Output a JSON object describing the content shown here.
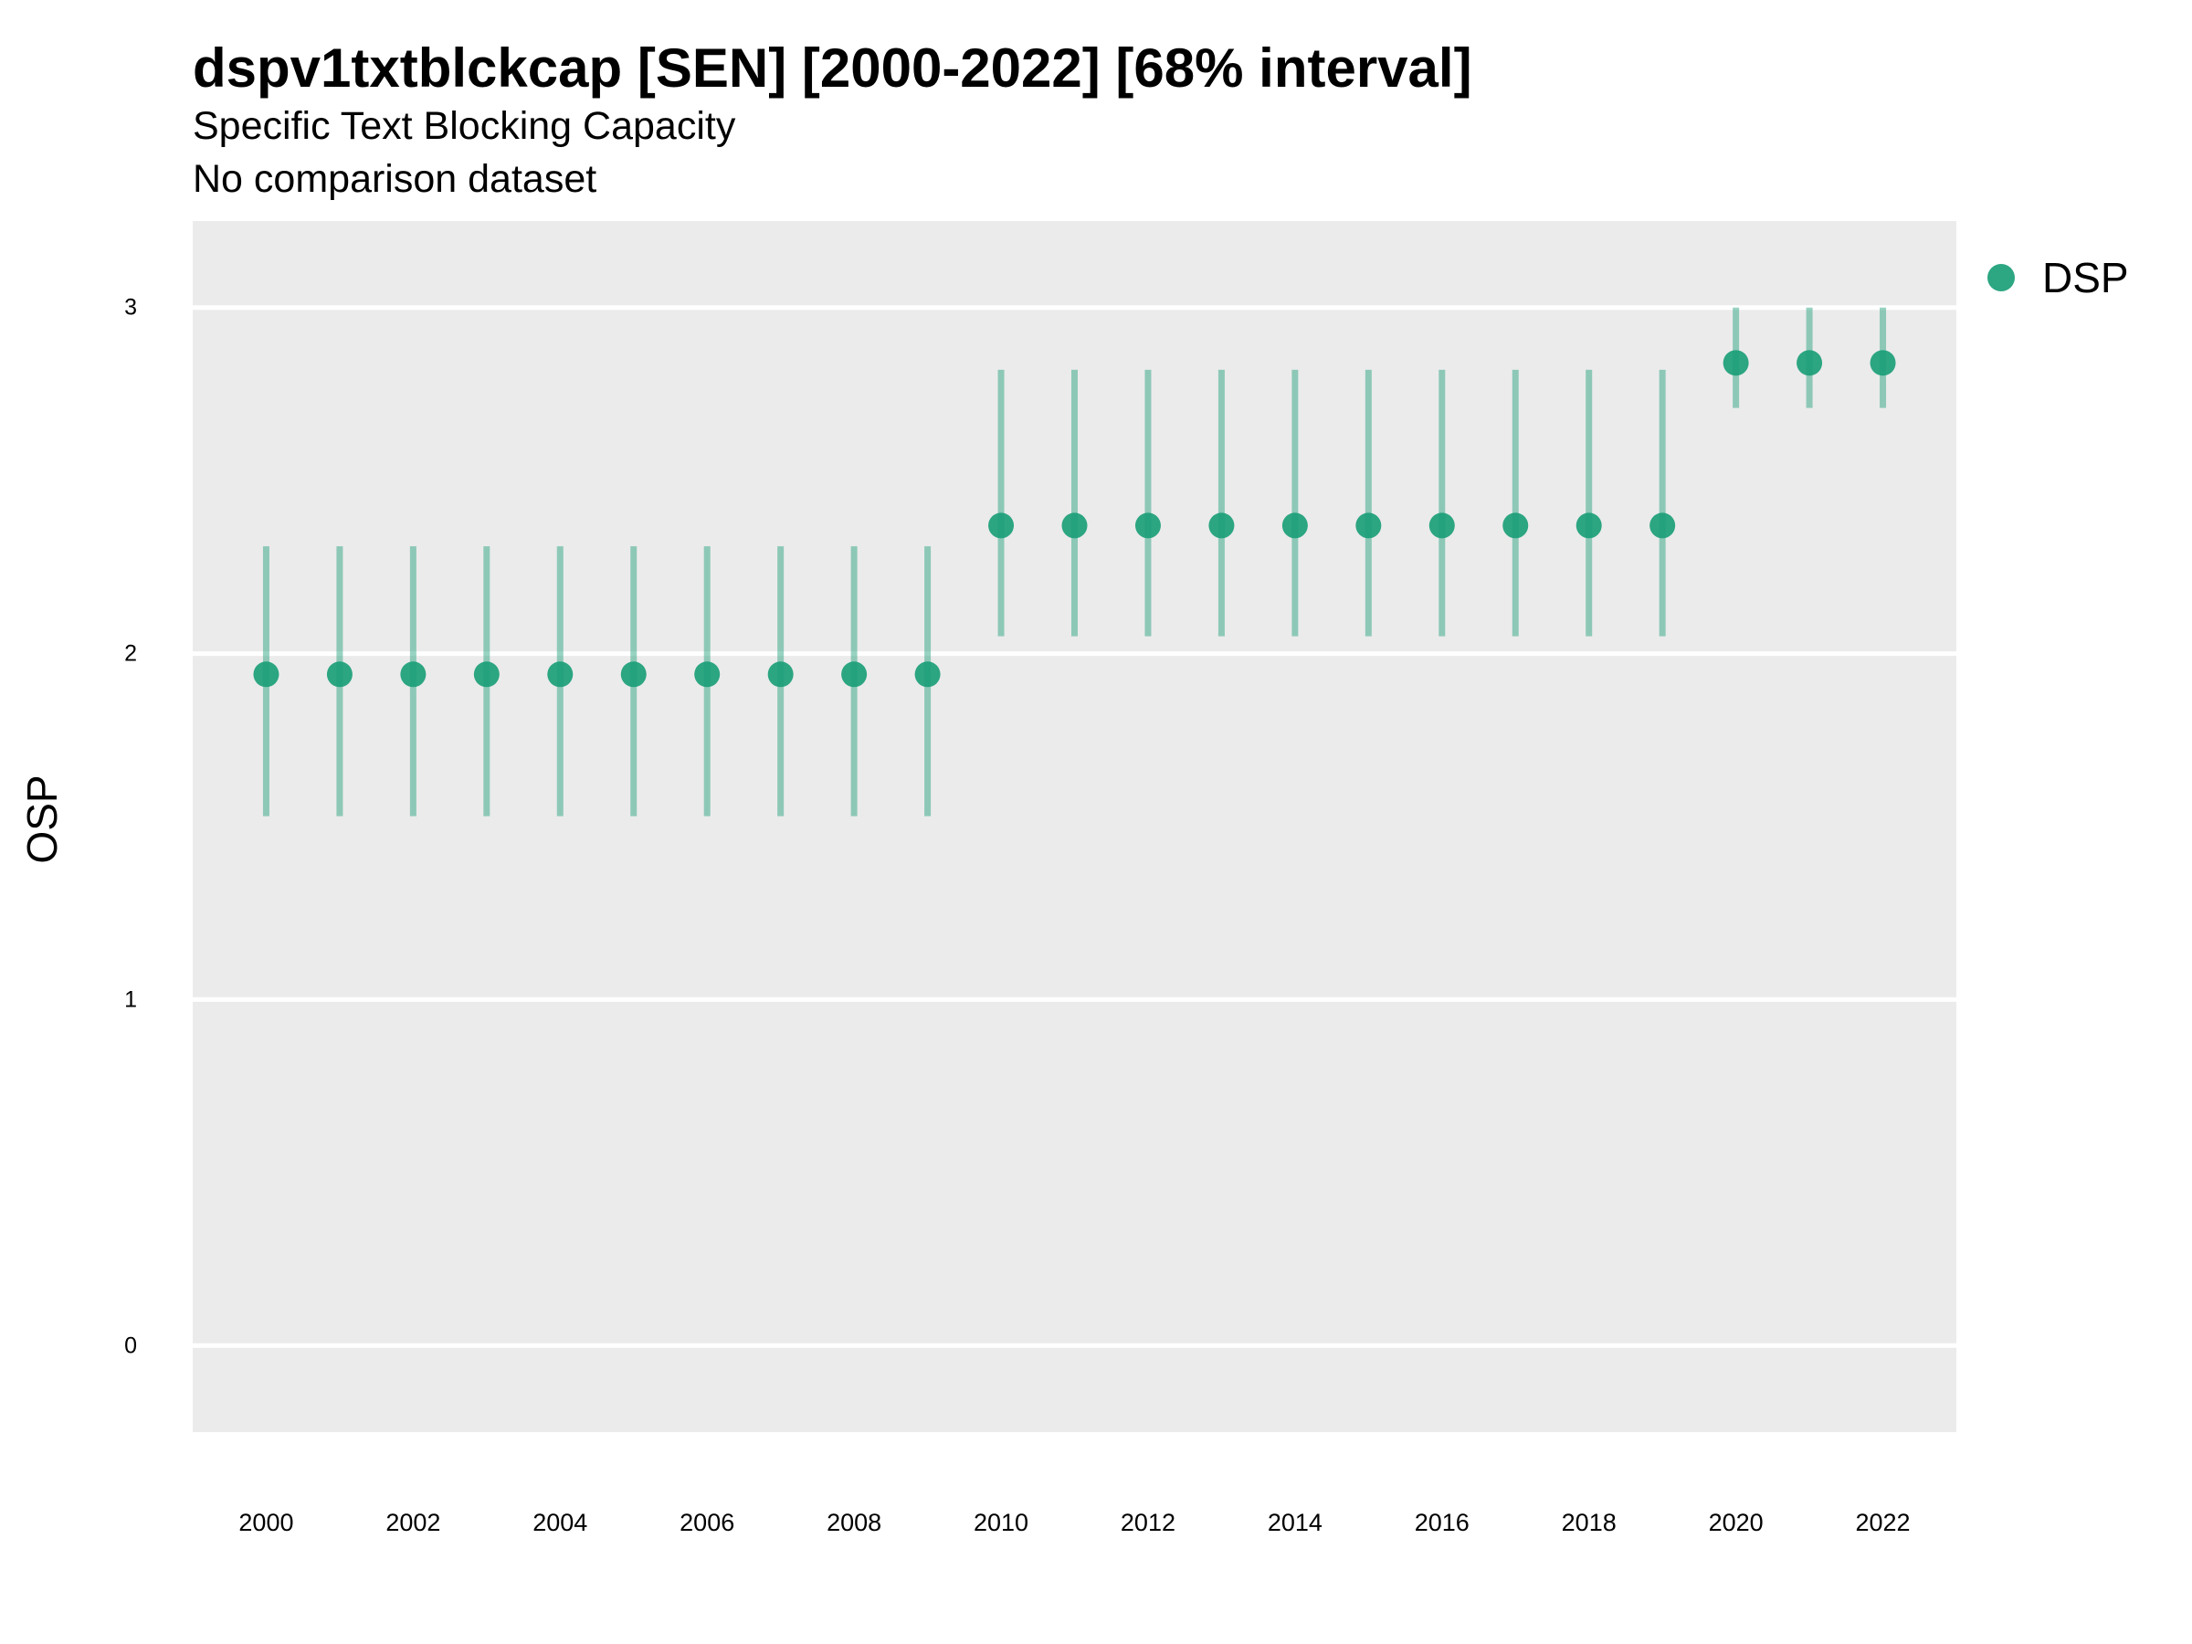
{
  "chart_data": {
    "type": "scatter",
    "title": "dspv1txtblckcap [SEN] [2000-2022] [68% interval]",
    "subtitle": "Specific Text Blocking Capacity",
    "caption": "No comparison dataset",
    "xlabel": "",
    "ylabel": "OSP",
    "xlim": [
      1999,
      2023
    ],
    "ylim": [
      -0.25,
      3.25
    ],
    "x_ticks": [
      2000,
      2002,
      2004,
      2006,
      2008,
      2010,
      2012,
      2014,
      2016,
      2018,
      2020,
      2022
    ],
    "y_ticks": [
      0,
      1,
      2,
      3
    ],
    "grid": true,
    "legend_position": "right",
    "series": [
      {
        "name": "DSP",
        "color": "#1b9e77",
        "x": [
          2000,
          2001,
          2002,
          2003,
          2004,
          2005,
          2006,
          2007,
          2008,
          2009,
          2010,
          2011,
          2012,
          2013,
          2014,
          2015,
          2016,
          2017,
          2018,
          2019,
          2020,
          2021,
          2022
        ],
        "y": [
          1.94,
          1.94,
          1.94,
          1.94,
          1.94,
          1.94,
          1.94,
          1.94,
          1.94,
          1.94,
          2.37,
          2.37,
          2.37,
          2.37,
          2.37,
          2.37,
          2.37,
          2.37,
          2.37,
          2.37,
          2.84,
          2.84,
          2.84
        ],
        "lower": [
          1.53,
          1.53,
          1.53,
          1.53,
          1.53,
          1.53,
          1.53,
          1.53,
          1.53,
          1.53,
          2.05,
          2.05,
          2.05,
          2.05,
          2.05,
          2.05,
          2.05,
          2.05,
          2.05,
          2.05,
          2.71,
          2.71,
          2.71
        ],
        "upper": [
          2.31,
          2.31,
          2.31,
          2.31,
          2.31,
          2.31,
          2.31,
          2.31,
          2.31,
          2.31,
          2.82,
          2.82,
          2.82,
          2.82,
          2.82,
          2.82,
          2.82,
          2.82,
          2.82,
          2.82,
          3.0,
          3.0,
          3.0
        ]
      }
    ]
  }
}
